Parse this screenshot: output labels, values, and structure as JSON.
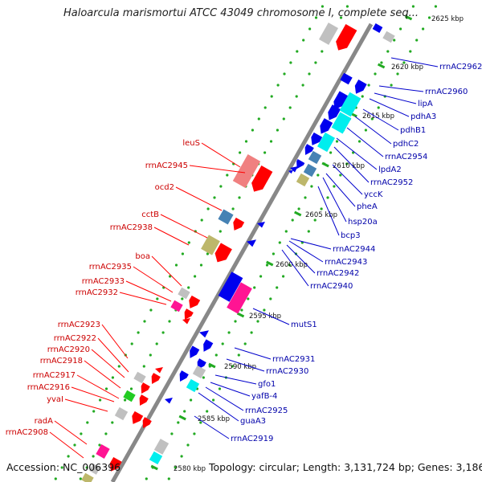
{
  "title": "Haloarcula marismortui ATCC 43049 chromosome I, complete seq...",
  "footer": {
    "accession": "Accession: NC_006396",
    "topology": "Topology: circular; Length: 3,131,724 bp; Genes: 3,186"
  },
  "colors": {
    "backbone": "#888888",
    "tick": "#22aa22",
    "tick_label": "#111111",
    "left_label": "#cc0000",
    "left_line": "#ff0000",
    "right_label": "#0000aa",
    "right_line": "#0000cc",
    "red": "#ff0000",
    "salmon": "#f08080",
    "blue": "#0000ee",
    "cyan": "#00eeee",
    "steel": "#4682b4",
    "khaki": "#bdb76b",
    "gray": "#c0c0c0",
    "magenta": "#ff1493",
    "green": "#22cc22"
  },
  "ticks": [
    "2580 kbp",
    "2585 kbp",
    "2590 kbp",
    "2595 kbp",
    "2600 kbp",
    "2605 kbp",
    "2610 kbp",
    "2615 kbp",
    "2620 kbp",
    "2625 kbp"
  ],
  "left_labels": [
    "leuS",
    "rrnAC2945",
    "ocd2",
    "cctB",
    "rrnAC2938",
    "boa",
    "rrnAC2935",
    "rrnAC2933",
    "rrnAC2932",
    "rrnAC2923",
    "rrnAC2922",
    "rrnAC2920",
    "rrnAC2918",
    "rrnAC2917",
    "rrnAC2916",
    "yvaI",
    "radA",
    "rrnAC2908"
  ],
  "right_labels": [
    "rrnAC2962",
    "rrnAC2960",
    "lipA",
    "pdhA3",
    "pdhB1",
    "pdhC2",
    "rrnAC2954",
    "lpdA2",
    "rrnAC2952",
    "yccK",
    "pheA",
    "hsp20a",
    "bcp3",
    "rrnAC2944",
    "rrnAC2943",
    "rrnAC2942",
    "rrnAC2940",
    "mutS1",
    "rrnAC2931",
    "rrnAC2930",
    "gfo1",
    "yafB-4",
    "rrnAC2925",
    "guaA3",
    "rrnAC2919"
  ]
}
